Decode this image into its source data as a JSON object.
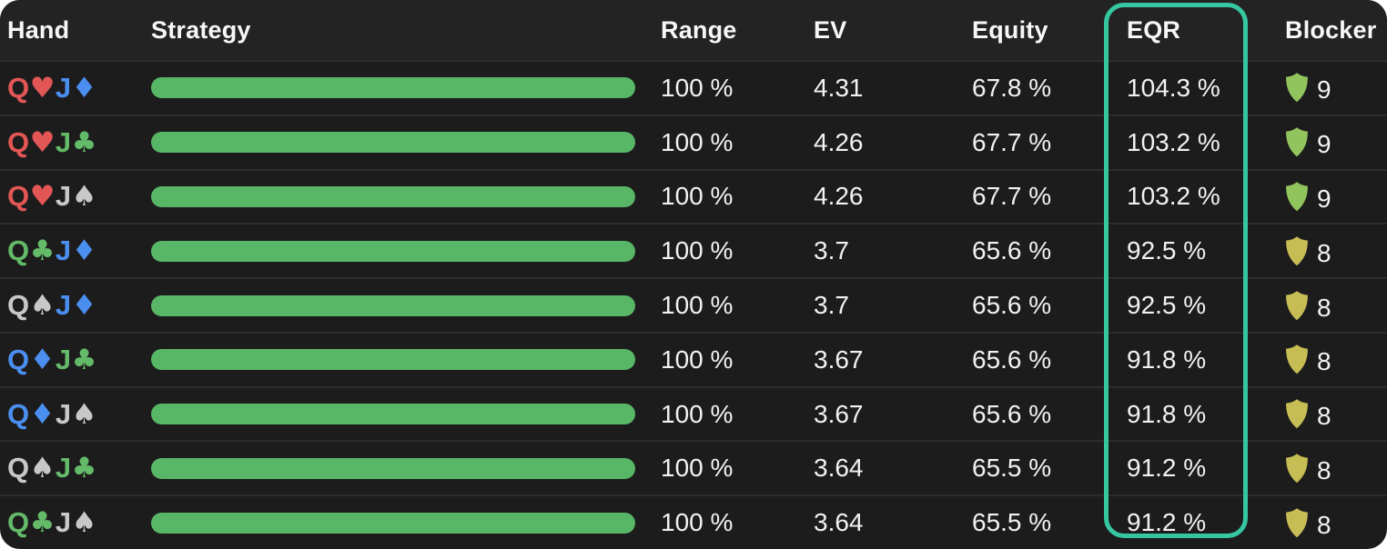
{
  "table": {
    "header": {
      "hand": "Hand",
      "strategy": "Strategy",
      "range": "Range",
      "ev": "EV",
      "equity": "Equity",
      "eqr": "EQR",
      "blocker": "Blocker"
    },
    "rows": [
      {
        "cards": [
          {
            "rank": "Q",
            "suit": "heart",
            "glyph": "♥"
          },
          {
            "rank": "J",
            "suit": "diamond",
            "glyph": "♦"
          }
        ],
        "strategy_action": "bet_green",
        "strategy_fill_pct": 100,
        "range": "100 %",
        "ev": "4.31",
        "equity": "67.8 %",
        "eqr": "104.3 %",
        "blocker_count": "9",
        "shield_tier": "green"
      },
      {
        "cards": [
          {
            "rank": "Q",
            "suit": "heart",
            "glyph": "♥"
          },
          {
            "rank": "J",
            "suit": "club",
            "glyph": "♣"
          }
        ],
        "strategy_action": "bet_green",
        "strategy_fill_pct": 100,
        "range": "100 %",
        "ev": "4.26",
        "equity": "67.7 %",
        "eqr": "103.2 %",
        "blocker_count": "9",
        "shield_tier": "green"
      },
      {
        "cards": [
          {
            "rank": "Q",
            "suit": "heart",
            "glyph": "♥"
          },
          {
            "rank": "J",
            "suit": "spade",
            "glyph": "♠"
          }
        ],
        "strategy_action": "bet_green",
        "strategy_fill_pct": 100,
        "range": "100 %",
        "ev": "4.26",
        "equity": "67.7 %",
        "eqr": "103.2 %",
        "blocker_count": "9",
        "shield_tier": "green"
      },
      {
        "cards": [
          {
            "rank": "Q",
            "suit": "club",
            "glyph": "♣"
          },
          {
            "rank": "J",
            "suit": "diamond",
            "glyph": "♦"
          }
        ],
        "strategy_action": "bet_green",
        "strategy_fill_pct": 100,
        "range": "100 %",
        "ev": "3.7",
        "equity": "65.6 %",
        "eqr": "92.5 %",
        "blocker_count": "8",
        "shield_tier": "yellow"
      },
      {
        "cards": [
          {
            "rank": "Q",
            "suit": "spade",
            "glyph": "♠"
          },
          {
            "rank": "J",
            "suit": "diamond",
            "glyph": "♦"
          }
        ],
        "strategy_action": "bet_green",
        "strategy_fill_pct": 100,
        "range": "100 %",
        "ev": "3.7",
        "equity": "65.6 %",
        "eqr": "92.5 %",
        "blocker_count": "8",
        "shield_tier": "yellow"
      },
      {
        "cards": [
          {
            "rank": "Q",
            "suit": "diamond",
            "glyph": "♦"
          },
          {
            "rank": "J",
            "suit": "club",
            "glyph": "♣"
          }
        ],
        "strategy_action": "bet_green",
        "strategy_fill_pct": 100,
        "range": "100 %",
        "ev": "3.67",
        "equity": "65.6 %",
        "eqr": "91.8 %",
        "blocker_count": "8",
        "shield_tier": "yellow"
      },
      {
        "cards": [
          {
            "rank": "Q",
            "suit": "diamond",
            "glyph": "♦"
          },
          {
            "rank": "J",
            "suit": "spade",
            "glyph": "♠"
          }
        ],
        "strategy_action": "bet_green",
        "strategy_fill_pct": 100,
        "range": "100 %",
        "ev": "3.67",
        "equity": "65.6 %",
        "eqr": "91.8 %",
        "blocker_count": "8",
        "shield_tier": "yellow"
      },
      {
        "cards": [
          {
            "rank": "Q",
            "suit": "spade",
            "glyph": "♠"
          },
          {
            "rank": "J",
            "suit": "club",
            "glyph": "♣"
          }
        ],
        "strategy_action": "bet_green",
        "strategy_fill_pct": 100,
        "range": "100 %",
        "ev": "3.64",
        "equity": "65.5 %",
        "eqr": "91.2 %",
        "blocker_count": "8",
        "shield_tier": "yellow"
      },
      {
        "cards": [
          {
            "rank": "Q",
            "suit": "club",
            "glyph": "♣"
          },
          {
            "rank": "J",
            "suit": "spade",
            "glyph": "♠"
          }
        ],
        "strategy_action": "bet_green",
        "strategy_fill_pct": 100,
        "range": "100 %",
        "ev": "3.64",
        "equity": "65.5 %",
        "eqr": "91.2 %",
        "blocker_count": "8",
        "shield_tier": "yellow"
      }
    ]
  },
  "colors": {
    "suits": {
      "heart": "#e25656",
      "diamond": "#4a8ff0",
      "club": "#63ba68",
      "spade": "#c8c8c8"
    },
    "shields": {
      "green": "#92c45e",
      "yellow": "#c6bd55"
    },
    "actions": {
      "bet_green": "#57b767"
    },
    "eqr_highlight": "#36c7a0",
    "row_bg": "#1d1c1c",
    "header_bg": "#242323"
  }
}
